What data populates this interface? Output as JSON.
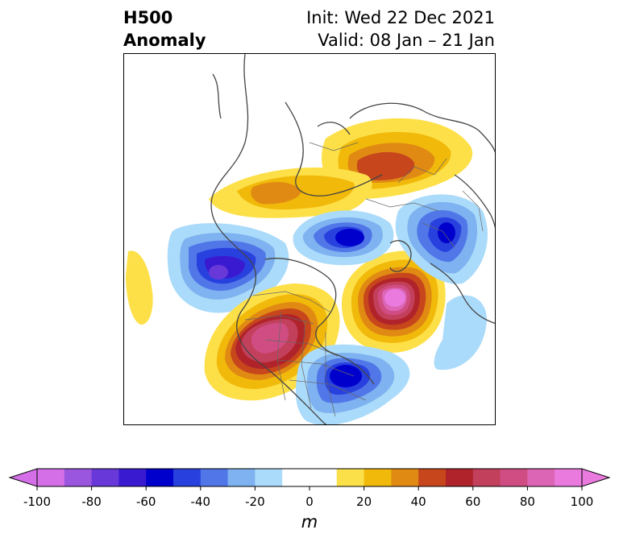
{
  "header": {
    "title_line1": "H500",
    "title_line2": "Anomaly",
    "init_text": "Init: Wed 22 Dec 2021",
    "valid_text": "Valid: 08 Jan – 21 Jan"
  },
  "map": {
    "projection": "polar stereographic, North Pole centered",
    "variable": "500 hPa geopotential height anomaly",
    "features": [
      {
        "name": "ridge-western-north-america",
        "sign": "positive",
        "approx_peak_m": 80,
        "color": "#c3405c"
      },
      {
        "name": "ridge-greenland-north-atlantic",
        "sign": "positive",
        "approx_peak_m": 100,
        "color": "#e87be0"
      },
      {
        "name": "ridge-siberia",
        "sign": "positive",
        "approx_peak_m": 50,
        "color": "#c7461c"
      },
      {
        "name": "ridge-arctic-band",
        "sign": "positive",
        "approx_peak_m": 30,
        "color": "#e08a13"
      },
      {
        "name": "trough-gulf-of-alaska",
        "sign": "negative",
        "approx_peak_m": -60,
        "color": "#2424c9"
      },
      {
        "name": "trough-eastern-us",
        "sign": "negative",
        "approx_peak_m": -60,
        "color": "#0000cd"
      },
      {
        "name": "trough-arctic-north-of-greenland",
        "sign": "negative",
        "approx_peak_m": -60,
        "color": "#0000cd"
      },
      {
        "name": "trough-scandinavia-europe",
        "sign": "negative",
        "approx_peak_m": -50,
        "color": "#2841de"
      },
      {
        "name": "trough-east-asia",
        "sign": "negative",
        "approx_peak_m": -30,
        "color": "#7eb2f0"
      },
      {
        "name": "ridge-west-pacific",
        "sign": "positive",
        "approx_peak_m": 10,
        "color": "#fde047"
      }
    ]
  },
  "colorbar": {
    "unit": "m",
    "min": -100,
    "max": 100,
    "step": 10,
    "extend": "both",
    "tick_values": [
      -100,
      -80,
      -60,
      -40,
      -20,
      0,
      20,
      40,
      60,
      80,
      100
    ],
    "tick_labels": [
      "-100",
      "-80",
      "-60",
      "-40",
      "-20",
      "0",
      "20",
      "40",
      "60",
      "80",
      "100"
    ],
    "under_color": "#d56fe8",
    "over_color": "#ea7ade",
    "colors": [
      "#d56fe8",
      "#9b56e0",
      "#6839d8",
      "#3a1ad0",
      "#0000cd",
      "#2841de",
      "#5076e8",
      "#7eb2f0",
      "#abdbfa",
      "#ffffff",
      "#ffffff",
      "#fbe04a",
      "#f1b90a",
      "#e08a13",
      "#c7461c",
      "#b0232a",
      "#c3405c",
      "#d04d83",
      "#dc66b5",
      "#ea7ade"
    ]
  }
}
